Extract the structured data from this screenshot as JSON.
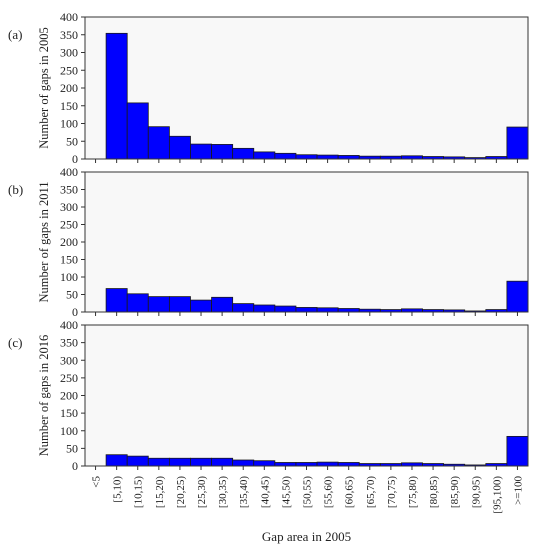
{
  "chart_data": {
    "type": "bar",
    "categories": [
      "<5",
      "[5,10)",
      "[10,15)",
      "[15,20)",
      "[20,25)",
      "[25,30)",
      "[30,35)",
      "[35,40)",
      "[40,45)",
      "[45,50)",
      "[50,55)",
      "[55,60)",
      "[60,65)",
      "[65,70)",
      "[70,75)",
      "[75,80)",
      "[80,85)",
      "[85,90)",
      "[90,95)",
      "[95,100)",
      ">=100"
    ],
    "xlabel": "Gap area in 2005",
    "ylim": [
      0,
      400
    ],
    "yticks": [
      0,
      50,
      100,
      150,
      200,
      250,
      300,
      350,
      400
    ],
    "bar_color": "#0000ff",
    "grid": false,
    "panels": [
      {
        "label": "(a)",
        "ylabel": "Number of gaps in 2005",
        "values": [
          0,
          354,
          158,
          91,
          64,
          42,
          41,
          30,
          20,
          16,
          12,
          11,
          10,
          8,
          8,
          9,
          7,
          6,
          4,
          7,
          90
        ]
      },
      {
        "label": "(b)",
        "ylabel": "Number of gaps in 2011",
        "values": [
          0,
          67,
          52,
          44,
          44,
          34,
          42,
          24,
          20,
          17,
          13,
          12,
          10,
          8,
          7,
          9,
          7,
          6,
          3,
          7,
          88
        ]
      },
      {
        "label": "(c)",
        "ylabel": "Number of gaps in 2016",
        "values": [
          0,
          32,
          28,
          22,
          22,
          22,
          22,
          17,
          15,
          10,
          10,
          11,
          10,
          7,
          7,
          9,
          7,
          5,
          3,
          7,
          84
        ]
      }
    ]
  }
}
